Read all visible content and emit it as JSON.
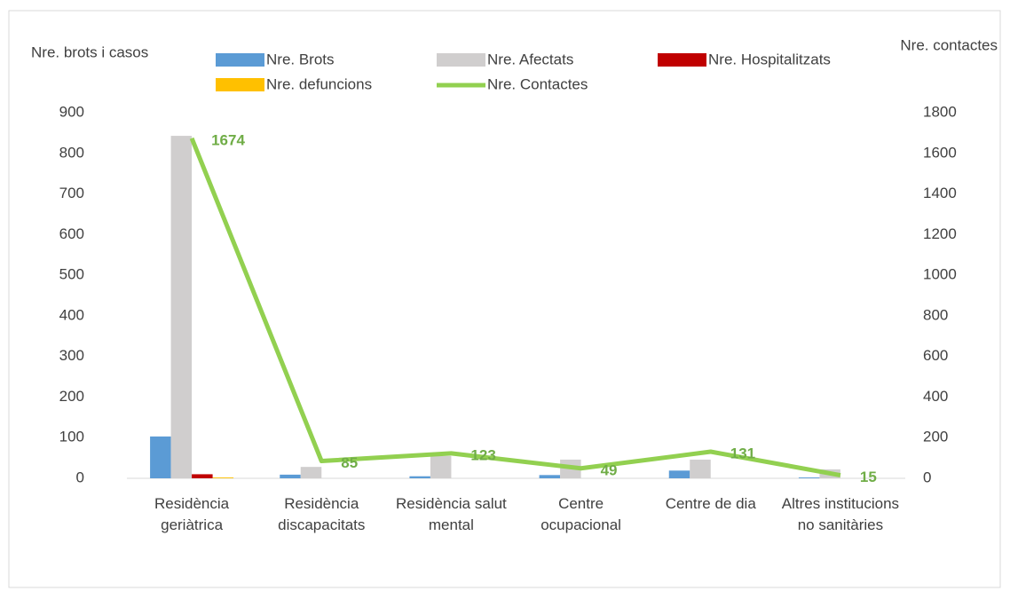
{
  "chart_data": {
    "type": "bar",
    "y_label": "Nre. brots i casos",
    "y2_label": "Nre. contactes",
    "categories": [
      "Residència geriàtrica",
      "Residència discapacitats",
      "Residència salut mental",
      "Centre ocupacional",
      "Centre de dia",
      "Altres institucions no sanitàries"
    ],
    "series": [
      {
        "name": "Nre. Brots",
        "color": "#5b9bd5",
        "values": [
          103,
          9,
          5,
          8,
          19,
          2
        ]
      },
      {
        "name": "Nre. Afectats",
        "color": "#d0cece",
        "values": [
          843,
          28,
          55,
          46,
          46,
          22
        ]
      },
      {
        "name": "Nre. Hospitalitzats",
        "color": "#c00000",
        "values": [
          10,
          0,
          0,
          0,
          0,
          0
        ]
      },
      {
        "name": "Nre. defuncions",
        "color": "#ffc000",
        "values": [
          2,
          0,
          0,
          0,
          0,
          0
        ]
      },
      {
        "name": "Nre.  Contactes",
        "color": "#92d050",
        "type": "line",
        "axis": "y2",
        "values": [
          1674,
          85,
          123,
          49,
          131,
          15
        ],
        "label_color": "#70ad47"
      }
    ],
    "ylim": [
      0,
      900
    ],
    "yticks": [
      0,
      100,
      200,
      300,
      400,
      500,
      600,
      700,
      800,
      900
    ],
    "y2lim": [
      0,
      1800
    ],
    "y2ticks": [
      0,
      200,
      400,
      600,
      800,
      1000,
      1200,
      1400,
      1600,
      1800
    ],
    "grid": false
  }
}
